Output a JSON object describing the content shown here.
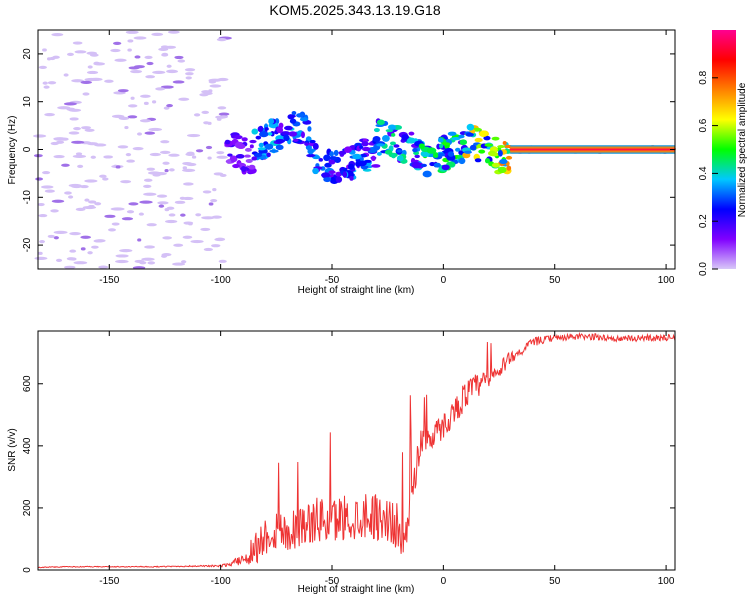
{
  "figure_title": "KOM5.2025.343.13.19.G18",
  "chart_data": [
    {
      "type": "heatmap",
      "title": "KOM5.2025.343.13.19.G18",
      "xlabel": "Height of straight line (km)",
      "ylabel": "Frequency (Hz)",
      "xlim": [
        -182,
        104
      ],
      "ylim": [
        -25,
        25
      ],
      "xticks": [
        -150,
        -100,
        -50,
        0,
        50,
        100
      ],
      "yticks": [
        -20,
        -10,
        0,
        10,
        20
      ],
      "grid": false,
      "noise_region": {
        "x": [
          -182,
          -97
        ],
        "y": [
          -25,
          25
        ],
        "amplitude": 0.05
      },
      "ridge_segments": [
        {
          "x": [
            -97,
            -85
          ],
          "y_center": 0,
          "amplitude": 0.15
        },
        {
          "x": [
            -85,
            -60
          ],
          "y_center": 3,
          "amplitude": 0.3
        },
        {
          "x": [
            -60,
            -30
          ],
          "y_center": -2,
          "amplitude": 0.3
        },
        {
          "x": [
            -30,
            -10
          ],
          "y_center": 1,
          "amplitude": 0.35
        },
        {
          "x": [
            -10,
            10
          ],
          "y_center": -1,
          "amplitude": 0.4
        },
        {
          "x": [
            10,
            30
          ],
          "y_center": 0,
          "amplitude": 0.6
        },
        {
          "x": [
            30,
            104
          ],
          "y_center": 0,
          "amplitude": 0.95
        }
      ],
      "colorbar": {
        "label": "Normalized spectral amplitude",
        "range": [
          0,
          1
        ],
        "ticks": [
          "0.0",
          "0.2",
          "0.4",
          "0.6",
          "0.8"
        ],
        "tick_values": [
          0,
          0.2,
          0.4,
          0.6,
          0.8
        ],
        "stops": [
          "#d8c8f8",
          "#8000ff",
          "#0000ff",
          "#00c8ff",
          "#00ff00",
          "#ffff00",
          "#ff8000",
          "#ff0000",
          "#ff0090"
        ]
      }
    },
    {
      "type": "line",
      "xlabel": "Height of straight line (km)",
      "ylabel": "SNR (v/v)",
      "xlim": [
        -182,
        104
      ],
      "ylim": [
        0,
        770
      ],
      "xticks": [
        -150,
        -100,
        -50,
        0,
        50,
        100
      ],
      "yticks": [
        0,
        200,
        400,
        600
      ],
      "grid": false,
      "series": [
        {
          "name": "SNR",
          "color": "#ee3333",
          "x": [
            -182,
            -170,
            -150,
            -130,
            -110,
            -100,
            -95,
            -90,
            -85,
            -80,
            -75,
            -70,
            -65,
            -60,
            -55,
            -50,
            -45,
            -40,
            -35,
            -30,
            -25,
            -20,
            -17,
            -15,
            -12,
            -10,
            -5,
            0,
            5,
            10,
            15,
            20,
            25,
            30,
            35,
            40,
            50,
            60,
            70,
            80,
            90,
            104
          ],
          "y": [
            8,
            10,
            10,
            10,
            12,
            12,
            18,
            30,
            50,
            90,
            110,
            100,
            120,
            130,
            140,
            130,
            150,
            140,
            160,
            150,
            140,
            110,
            80,
            160,
            330,
            400,
            420,
            450,
            500,
            550,
            580,
            600,
            630,
            680,
            700,
            730,
            745,
            748,
            748,
            740,
            745,
            745
          ],
          "noise": [
            2,
            2,
            2,
            2,
            3,
            5,
            10,
            30,
            80,
            90,
            100,
            100,
            100,
            100,
            110,
            110,
            110,
            110,
            110,
            110,
            110,
            110,
            80,
            130,
            80,
            70,
            60,
            60,
            60,
            70,
            60,
            50,
            40,
            30,
            20,
            20,
            15,
            15,
            15,
            15,
            15,
            15
          ]
        }
      ]
    }
  ]
}
